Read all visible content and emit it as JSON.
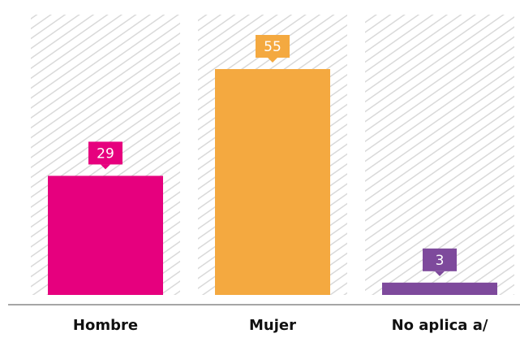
{
  "chart_data": {
    "type": "bar",
    "categories": [
      "Hombre",
      "Mujer",
      "No aplica a/"
    ],
    "values": [
      29,
      55,
      3
    ],
    "colors": [
      "#e6007e",
      "#f4a940",
      "#7e4a9c"
    ]
  }
}
